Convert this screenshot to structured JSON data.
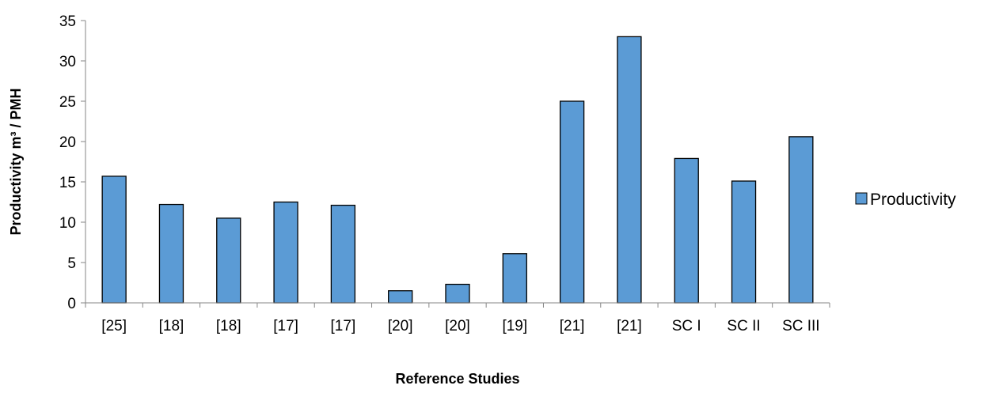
{
  "chart_data": {
    "type": "bar",
    "categories": [
      "[25]",
      "[18]",
      "[18]",
      "[17]",
      "[17]",
      "[20]",
      "[20]",
      "[19]",
      "[21]",
      "[21]",
      "SC I",
      "SC II",
      "SC III"
    ],
    "series": [
      {
        "name": "Productivity",
        "values": [
          15.7,
          12.2,
          10.5,
          12.5,
          12.1,
          1.5,
          2.3,
          6.1,
          25.0,
          33.0,
          17.9,
          15.1,
          20.6
        ],
        "color": "#5b9bd5"
      }
    ],
    "xlabel": "Reference Studies",
    "ylabel": "Productivity m³ / PMH",
    "ylim": [
      0,
      35
    ],
    "yticks": [
      0,
      5,
      10,
      15,
      20,
      25,
      30,
      35
    ],
    "grid": false,
    "legend_position": "right"
  }
}
